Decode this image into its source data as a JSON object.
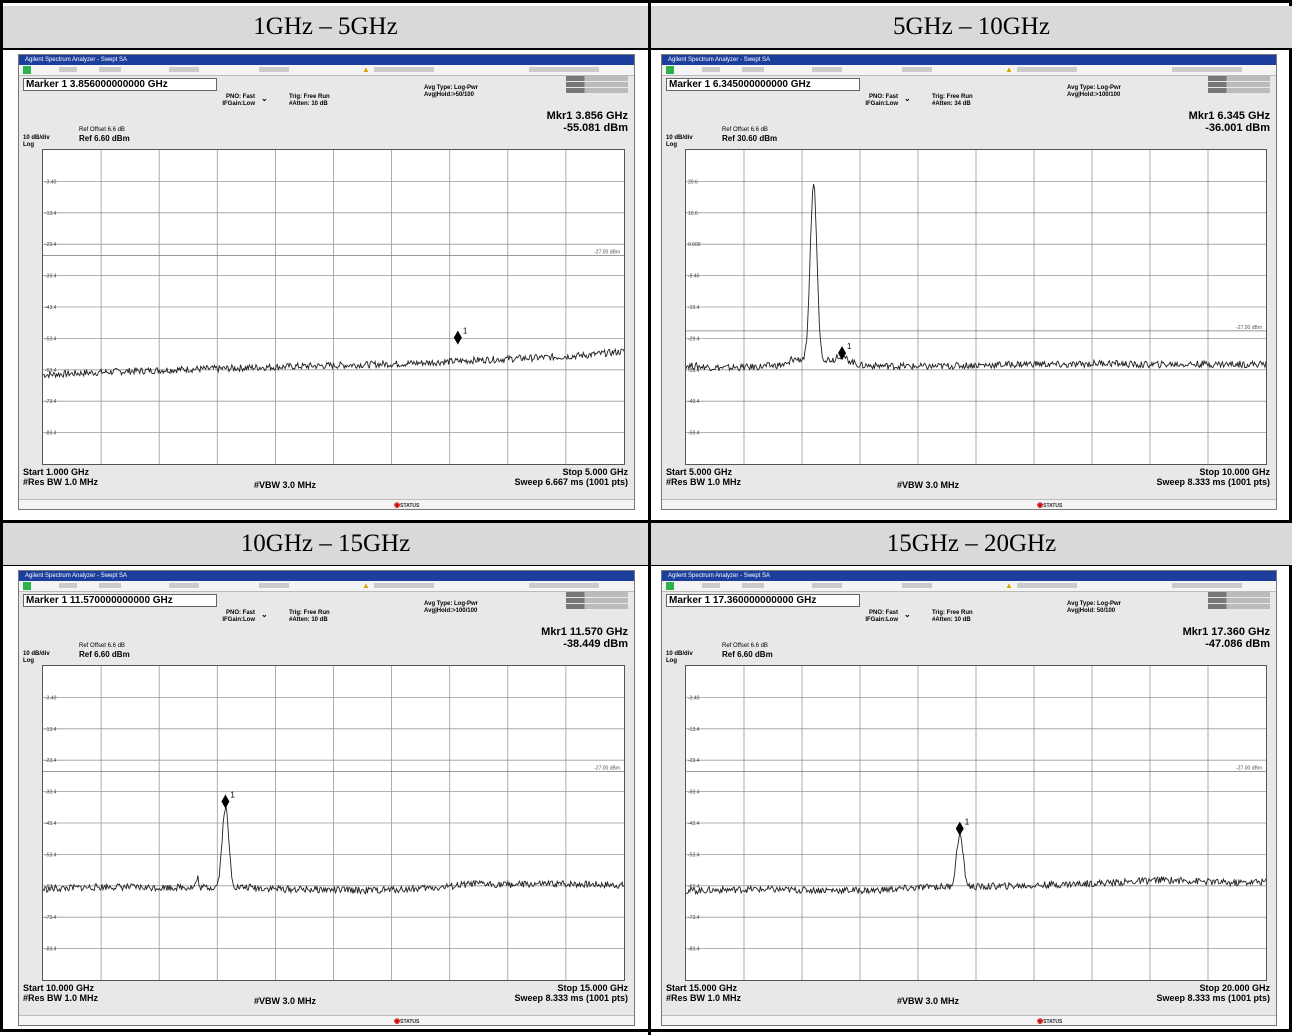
{
  "panels": [
    {
      "header": "1GHz – 5GHz",
      "marker_box": "Marker 1 3.856000000000 GHz",
      "pno": "PNO: Fast",
      "ifgain": "IFGain:Low",
      "trig": "Trig: Free Run",
      "atten": "#Atten: 10 dB",
      "avgtype": "Avg Type: Log-Pwr",
      "avghold": "Avg|Hold:>50/100",
      "ref_offset": "Ref Offset 6.6 dB",
      "ref": "Ref 6.60 dBm",
      "scale": "10 dB/div",
      "log": "Log",
      "mkr_freq": "Mkr1 3.856 GHz",
      "mkr_amp": "-55.081 dBm",
      "ylabels": [
        "-3.40",
        "-13.4",
        "-23.4",
        "-33.4",
        "-43.4",
        "-53.4",
        "-63.4",
        "-73.4",
        "-83.4"
      ],
      "limit_label": "-27.00 dBm",
      "start": "Start 1.000 GHz",
      "stop": "Stop 5.000 GHz",
      "rbw": "#Res BW 1.0 MHz",
      "vbw": "#VBW 3.0 MHz",
      "sweep": "Sweep  6.667 ms (1001 pts)",
      "marker_num": "1"
    },
    {
      "header": "5GHz – 10GHz",
      "marker_box": "Marker 1 6.345000000000 GHz",
      "pno": "PNO: Fast",
      "ifgain": "IFGain:Low",
      "trig": "Trig: Free Run",
      "atten": "#Atten: 34 dB",
      "avgtype": "Avg Type: Log-Pwr",
      "avghold": "Avg|Hold:>100/100",
      "ref_offset": "Ref Offset 6.6 dB",
      "ref": "Ref 30.60 dBm",
      "scale": "10 dB/div",
      "log": "Log",
      "mkr_freq": "Mkr1 6.345 GHz",
      "mkr_amp": "-36.001 dBm",
      "ylabels": [
        "20.6",
        "10.6",
        "0.600",
        "-9.40",
        "-19.4",
        "-29.4",
        "-39.4",
        "-49.4",
        "-59.4"
      ],
      "limit_label": "-27.00 dBm",
      "start": "Start 5.000 GHz",
      "stop": "Stop 10.000 GHz",
      "rbw": "#Res BW 1.0 MHz",
      "vbw": "#VBW 3.0 MHz",
      "sweep": "Sweep  8.333 ms (1001 pts)",
      "marker_num": "1"
    },
    {
      "header": "10GHz – 15GHz",
      "marker_box": "Marker 1 11.570000000000 GHz",
      "pno": "PNO: Fast",
      "ifgain": "IFGain:Low",
      "trig": "Trig: Free Run",
      "atten": "#Atten: 10 dB",
      "avgtype": "Avg Type: Log-Pwr",
      "avghold": "Avg|Hold:>100/100",
      "ref_offset": "Ref Offset 6.6 dB",
      "ref": "Ref 6.60 dBm",
      "scale": "10 dB/div",
      "log": "Log",
      "mkr_freq": "Mkr1 11.570 GHz",
      "mkr_amp": "-38.449 dBm",
      "ylabels": [
        "-3.40",
        "-13.4",
        "-23.4",
        "-33.4",
        "-43.4",
        "-53.4",
        "-63.4",
        "-73.4",
        "-83.4"
      ],
      "limit_label": "-27.00 dBm",
      "start": "Start 10.000 GHz",
      "stop": "Stop 15.000 GHz",
      "rbw": "#Res BW 1.0 MHz",
      "vbw": "#VBW 3.0 MHz",
      "sweep": "Sweep  8.333 ms (1001 pts)",
      "marker_num": "1"
    },
    {
      "header": "15GHz – 20GHz",
      "marker_box": "Marker 1 17.360000000000 GHz",
      "pno": "PNO: Fast",
      "ifgain": "IFGain:Low",
      "trig": "Trig: Free Run",
      "atten": "#Atten: 10 dB",
      "avgtype": "Avg Type: Log-Pwr",
      "avghold": "Avg|Hold: 50/100",
      "ref_offset": "Ref Offset 6.6 dB",
      "ref": "Ref 6.60 dBm",
      "scale": "10 dB/div",
      "log": "Log",
      "mkr_freq": "Mkr1 17.360 GHz",
      "mkr_amp": "-47.086 dBm",
      "ylabels": [
        "-3.40",
        "-13.4",
        "-23.4",
        "-33.4",
        "-43.4",
        "-53.4",
        "-63.4",
        "-73.4",
        "-83.4"
      ],
      "limit_label": "-27.00 dBm",
      "start": "Start 15.000 GHz",
      "stop": "Stop 20.000 GHz",
      "rbw": "#Res BW 1.0 MHz",
      "vbw": "#VBW 3.0 MHz",
      "sweep": "Sweep  8.333 ms (1001 pts)",
      "marker_num": "1"
    }
  ],
  "chart_data": [
    {
      "type": "line",
      "series": [
        {
          "values": [
            -65.0,
            -64.5,
            -64.0,
            -63.6,
            -63.2,
            -63.0,
            -62.6,
            -62.3,
            -62.0,
            -61.7,
            -61.4,
            -60.9,
            -60.3,
            -59.8,
            -59.4,
            -58.7,
            -57.5
          ],
          "x": [
            1.0,
            1.25,
            1.5,
            1.75,
            2.0,
            2.25,
            2.5,
            2.75,
            3.0,
            3.25,
            3.5,
            3.75,
            4.0,
            4.25,
            4.5,
            4.75,
            5.0
          ]
        }
      ],
      "marker": {
        "x": 3.856,
        "y": -55.081
      },
      "ylim": [
        -93.4,
        6.6
      ],
      "xlim": [
        1.0,
        5.0
      ]
    },
    {
      "type": "line",
      "series": [
        {
          "values": [
            -38.0,
            -38.8,
            -38.5,
            -37.6,
            20.0,
            -34.5,
            -38.0,
            -38.2,
            -38.4,
            -38.0,
            -37.8,
            -37.5,
            -37.9,
            -37.2,
            -37.8,
            -37.6,
            -37.6
          ],
          "x": [
            5.0,
            5.3,
            5.6,
            5.9,
            6.1,
            6.3,
            6.5,
            6.8,
            7.1,
            7.4,
            7.7,
            8.0,
            8.3,
            8.6,
            8.9,
            9.3,
            10.0
          ]
        }
      ],
      "marker": {
        "x": 6.345,
        "y": -36.001
      },
      "ylim": [
        -69.4,
        30.6
      ],
      "xlim": [
        5.0,
        10.0
      ]
    },
    {
      "type": "line",
      "series": [
        {
          "values": [
            -64.5,
            -64.0,
            -63.7,
            -64.0,
            -63.8,
            -38.4,
            -64.0,
            -64.5,
            -64.6,
            -64.9,
            -64.5,
            -64.0,
            -62.8,
            -63.0,
            -62.9,
            -62.8,
            -63.2
          ],
          "x": [
            10.0,
            10.3,
            10.6,
            10.9,
            11.3,
            11.57,
            11.8,
            12.1,
            12.4,
            12.8,
            13.1,
            13.4,
            13.7,
            14.0,
            14.3,
            14.6,
            15.0
          ]
        }
      ],
      "marker": {
        "x": 11.57,
        "y": -38.449
      },
      "ylim": [
        -93.4,
        6.6
      ],
      "xlim": [
        10.0,
        15.0
      ]
    },
    {
      "type": "line",
      "series": [
        {
          "values": [
            -65.0,
            -64.7,
            -64.5,
            -64.7,
            -64.8,
            -64.9,
            -63.8,
            -47.1,
            -63.6,
            -63.4,
            -63.0,
            -62.6,
            -62.2,
            -61.5,
            -61.9,
            -62.5,
            -62.0
          ],
          "x": [
            15.0,
            15.3,
            15.6,
            15.9,
            16.3,
            16.6,
            17.1,
            17.36,
            17.6,
            17.9,
            18.2,
            18.5,
            18.8,
            19.1,
            19.4,
            19.7,
            20.0
          ]
        }
      ],
      "marker": {
        "x": 17.36,
        "y": -47.086
      },
      "ylim": [
        -93.4,
        6.6
      ],
      "xlim": [
        15.0,
        20.0
      ]
    }
  ]
}
